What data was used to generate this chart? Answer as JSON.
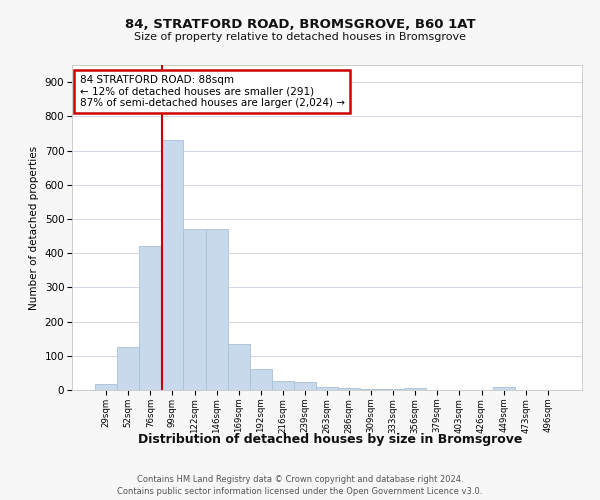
{
  "title1": "84, STRATFORD ROAD, BROMSGROVE, B60 1AT",
  "title2": "Size of property relative to detached houses in Bromsgrove",
  "xlabel": "Distribution of detached houses by size in Bromsgrove",
  "ylabel": "Number of detached properties",
  "bar_labels": [
    "29sqm",
    "52sqm",
    "76sqm",
    "99sqm",
    "122sqm",
    "146sqm",
    "169sqm",
    "192sqm",
    "216sqm",
    "239sqm",
    "263sqm",
    "286sqm",
    "309sqm",
    "333sqm",
    "356sqm",
    "379sqm",
    "403sqm",
    "426sqm",
    "449sqm",
    "473sqm",
    "496sqm"
  ],
  "bar_values": [
    18,
    125,
    420,
    730,
    470,
    470,
    135,
    60,
    25,
    22,
    10,
    7,
    4,
    2,
    7,
    1,
    1,
    0,
    8,
    0,
    0
  ],
  "bar_color": "#c8d9ec",
  "bar_edgecolor": "#a8c0d8",
  "vline_color": "#cc0000",
  "vline_pos": 2.52,
  "annotation_text": "84 STRATFORD ROAD: 88sqm\n← 12% of detached houses are smaller (291)\n87% of semi-detached houses are larger (2,024) →",
  "ylim": [
    0,
    950
  ],
  "yticks": [
    0,
    100,
    200,
    300,
    400,
    500,
    600,
    700,
    800,
    900
  ],
  "footer1": "Contains HM Land Registry data © Crown copyright and database right 2024.",
  "footer2": "Contains public sector information licensed under the Open Government Licence v3.0.",
  "bg_color": "#f7f7f7",
  "plot_bg_color": "#ffffff",
  "grid_color": "#d0d8e4"
}
